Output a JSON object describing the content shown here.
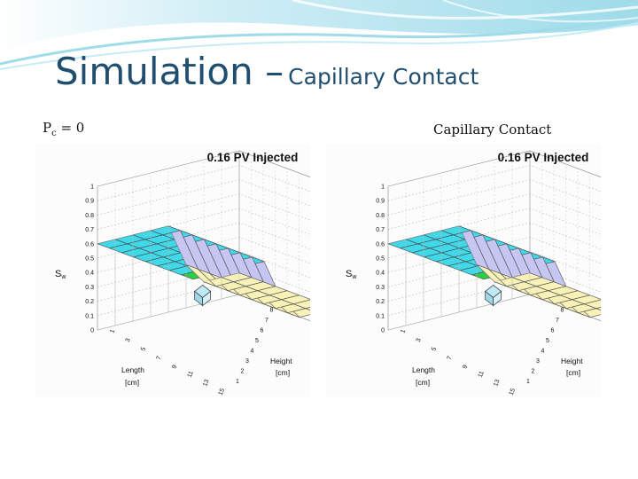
{
  "slide": {
    "title_main": "Simulation –",
    "title_sub": "Capillary Contact"
  },
  "labels": {
    "left_caption": "P",
    "left_caption_sub": "c",
    "left_caption_rest": " = 0",
    "right_caption": "Capillary Contact"
  },
  "colors": {
    "title": "#1f4e6f",
    "banner": "#8fd3e6",
    "surface_high": "#3fd9ea",
    "surface_mid": "#c7c6f2",
    "surface_low": "#f8f1b8",
    "corner_green": "#2ecc40",
    "mesh": "#4a4a4a"
  },
  "chart_data": [
    {
      "type": "surface3d",
      "title": "0.16 PV Injected",
      "zlabel": "Sw",
      "xlabel": "Length [cm]",
      "ylabel": "Height [cm]",
      "z_ticks": [
        "1",
        "0.9",
        "0.8",
        "0.7",
        "0.6",
        "0.5",
        "0.4",
        "0.3",
        "0.2",
        "0.1",
        "0"
      ],
      "x_ticks": [
        "1",
        "3",
        "5",
        "7",
        "9",
        "11",
        "13",
        "15"
      ],
      "y_ticks": [
        "1",
        "2",
        "3",
        "4",
        "5",
        "6",
        "7",
        "8"
      ],
      "zlim": [
        0,
        1
      ],
      "z_levels": [
        0.6,
        0.6,
        0.6,
        0.6,
        0.6,
        0.3,
        0.15,
        0.15,
        0.15
      ]
    },
    {
      "type": "surface3d",
      "title": "0.16 PV Injected",
      "zlabel": "Sw",
      "xlabel": "Length [cm]",
      "ylabel": "Height [cm]",
      "z_ticks": [
        "1",
        "0.9",
        "0.8",
        "0.7",
        "0.6",
        "0.5",
        "0.4",
        "0.3",
        "0.2",
        "0.1",
        "0"
      ],
      "x_ticks": [
        "1",
        "3",
        "5",
        "7",
        "9",
        "11",
        "13",
        "15"
      ],
      "y_ticks": [
        "1",
        "2",
        "3",
        "4",
        "5",
        "6",
        "7",
        "8"
      ],
      "zlim": [
        0,
        1
      ],
      "z_levels": [
        0.6,
        0.6,
        0.6,
        0.6,
        0.6,
        0.3,
        0.15,
        0.15,
        0.15
      ]
    }
  ]
}
